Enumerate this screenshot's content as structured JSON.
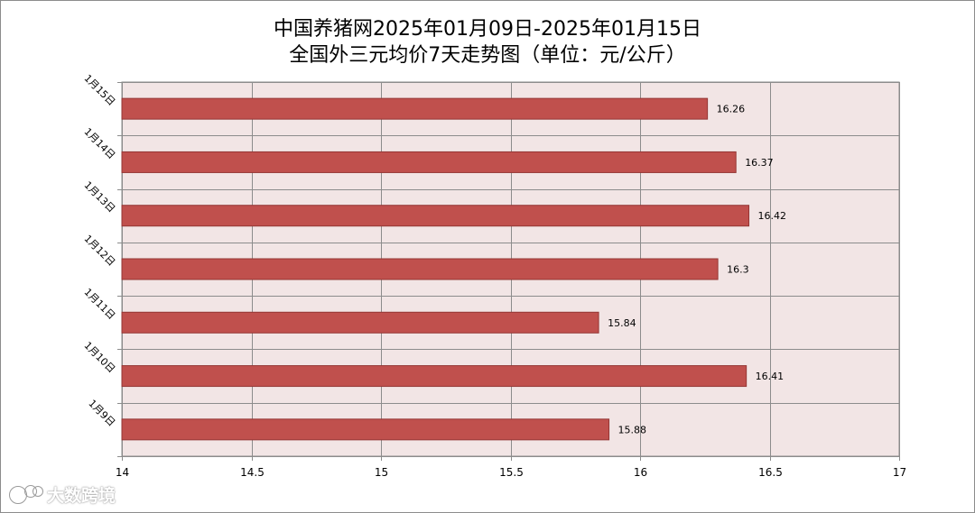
{
  "chart_data": {
    "type": "bar",
    "orientation": "horizontal",
    "title": [
      "中国养猪网2025年01月09日-2025年01月15日",
      "全国外三元均价7天走势图（单位：元/公斤）"
    ],
    "categories": [
      "1月15日",
      "1月14日",
      "1月13日",
      "1月12日",
      "1月11日",
      "1月10日",
      "1月9日"
    ],
    "values": [
      16.26,
      16.37,
      16.42,
      16.3,
      15.84,
      16.41,
      15.88
    ],
    "data_labels": [
      "16.26",
      "16.37",
      "16.42",
      "16.3",
      "15.84",
      "16.41",
      "15.88"
    ],
    "xlim": [
      14,
      17
    ],
    "x_ticks": [
      "14",
      "14.5",
      "15",
      "15.5",
      "16",
      "16.5",
      "17"
    ],
    "grid": true,
    "colors": {
      "bar": "#c0504d",
      "bar_border": "#943634",
      "plot_bg": "#f2e5e5",
      "grid": "#8c8c8c"
    }
  },
  "watermark": {
    "text": "大数跨境",
    "icon": "logo-icon"
  }
}
